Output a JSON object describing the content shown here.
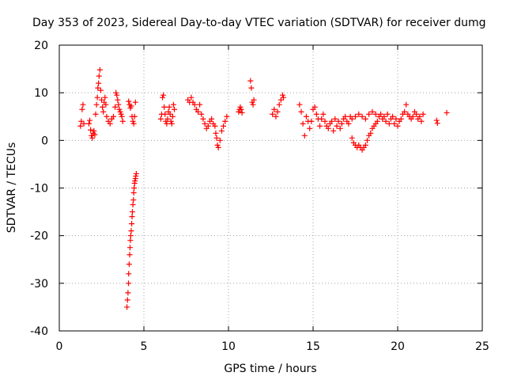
{
  "chart_data": {
    "type": "scatter",
    "title": "Day 353 of 2023, Sidereal Day-to-day VTEC variation (SDTVAR) for receiver dumg",
    "xlabel": "GPS time / hours",
    "ylabel": "SDTVAR / TECUs",
    "xlim": [
      0,
      25
    ],
    "ylim": [
      -40,
      20
    ],
    "xticks": [
      0,
      5,
      10,
      15,
      20,
      25
    ],
    "yticks": [
      -40,
      -30,
      -20,
      -10,
      0,
      10,
      20
    ],
    "grid": true,
    "marker": "+",
    "series": [
      {
        "name": "SDTVAR",
        "color": "#ff0000",
        "points": [
          [
            1.25,
            3.0
          ],
          [
            1.3,
            4.0
          ],
          [
            1.35,
            6.5
          ],
          [
            1.4,
            7.5
          ],
          [
            1.45,
            3.5
          ],
          [
            1.75,
            3.5
          ],
          [
            1.8,
            4.2
          ],
          [
            1.85,
            2.2
          ],
          [
            1.9,
            1.0
          ],
          [
            1.95,
            0.5
          ],
          [
            2.0,
            1.5
          ],
          [
            2.05,
            2.0
          ],
          [
            2.1,
            1.2
          ],
          [
            2.15,
            5.5
          ],
          [
            2.2,
            7.5
          ],
          [
            2.25,
            9.0
          ],
          [
            2.28,
            11.0
          ],
          [
            2.32,
            12.0
          ],
          [
            2.35,
            13.5
          ],
          [
            2.4,
            14.8
          ],
          [
            2.45,
            10.5
          ],
          [
            2.5,
            8.5
          ],
          [
            2.55,
            7.0
          ],
          [
            2.6,
            6.0
          ],
          [
            2.65,
            8.0
          ],
          [
            2.7,
            9.0
          ],
          [
            2.75,
            7.5
          ],
          [
            2.8,
            5.0
          ],
          [
            2.9,
            4.0
          ],
          [
            3.0,
            3.5
          ],
          [
            3.1,
            4.5
          ],
          [
            3.2,
            5.0
          ],
          [
            3.3,
            7.0
          ],
          [
            3.35,
            10.0
          ],
          [
            3.4,
            9.5
          ],
          [
            3.45,
            8.5
          ],
          [
            3.5,
            7.5
          ],
          [
            3.55,
            6.5
          ],
          [
            3.6,
            6.0
          ],
          [
            3.65,
            5.5
          ],
          [
            3.7,
            5.0
          ],
          [
            3.75,
            4.0
          ],
          [
            4.0,
            -35.0
          ],
          [
            4.03,
            -33.5
          ],
          [
            4.06,
            -32.0
          ],
          [
            4.09,
            -30.0
          ],
          [
            4.1,
            -28.0
          ],
          [
            4.13,
            -26.0
          ],
          [
            4.16,
            -24.0
          ],
          [
            4.18,
            -22.5
          ],
          [
            4.2,
            -21.0
          ],
          [
            4.22,
            -20.0
          ],
          [
            4.25,
            -19.0
          ],
          [
            4.28,
            -17.5
          ],
          [
            4.3,
            -16.0
          ],
          [
            4.32,
            -15.0
          ],
          [
            4.35,
            -13.5
          ],
          [
            4.38,
            -12.5
          ],
          [
            4.4,
            -11.0
          ],
          [
            4.42,
            -10.0
          ],
          [
            4.45,
            -9.0
          ],
          [
            4.47,
            -8.5
          ],
          [
            4.5,
            -8.0
          ],
          [
            4.52,
            -7.5
          ],
          [
            4.55,
            -7.0
          ],
          [
            4.1,
            8.2
          ],
          [
            4.15,
            7.5
          ],
          [
            4.2,
            6.8
          ],
          [
            4.25,
            7.2
          ],
          [
            4.3,
            5.0
          ],
          [
            4.35,
            4.0
          ],
          [
            4.4,
            3.5
          ],
          [
            4.45,
            5.0
          ],
          [
            4.5,
            8.0
          ],
          [
            6.0,
            4.5
          ],
          [
            6.05,
            5.5
          ],
          [
            6.1,
            9.0
          ],
          [
            6.15,
            9.5
          ],
          [
            6.2,
            7.0
          ],
          [
            6.25,
            5.5
          ],
          [
            6.3,
            4.0
          ],
          [
            6.35,
            3.5
          ],
          [
            6.4,
            4.5
          ],
          [
            6.45,
            6.0
          ],
          [
            6.5,
            7.0
          ],
          [
            6.55,
            5.5
          ],
          [
            6.6,
            4.0
          ],
          [
            6.65,
            3.5
          ],
          [
            6.7,
            5.0
          ],
          [
            6.75,
            7.5
          ],
          [
            6.8,
            6.5
          ],
          [
            7.6,
            8.5
          ],
          [
            7.7,
            8.0
          ],
          [
            7.8,
            9.0
          ],
          [
            7.9,
            8.0
          ],
          [
            8.0,
            7.5
          ],
          [
            8.1,
            6.5
          ],
          [
            8.2,
            6.0
          ],
          [
            8.3,
            7.5
          ],
          [
            8.4,
            5.5
          ],
          [
            8.5,
            4.5
          ],
          [
            8.6,
            3.5
          ],
          [
            8.7,
            2.5
          ],
          [
            8.8,
            3.0
          ],
          [
            8.9,
            4.0
          ],
          [
            9.0,
            4.5
          ],
          [
            9.1,
            3.5
          ],
          [
            9.2,
            3.0
          ],
          [
            9.25,
            1.5
          ],
          [
            9.3,
            0.5
          ],
          [
            9.35,
            -1.0
          ],
          [
            9.4,
            -1.5
          ],
          [
            9.5,
            0.0
          ],
          [
            9.6,
            2.0
          ],
          [
            9.7,
            3.0
          ],
          [
            9.8,
            4.0
          ],
          [
            9.9,
            5.0
          ],
          [
            10.6,
            6.0
          ],
          [
            10.65,
            6.5
          ],
          [
            10.7,
            7.0
          ],
          [
            10.75,
            6.5
          ],
          [
            10.8,
            5.8
          ],
          [
            11.3,
            12.5
          ],
          [
            11.35,
            11.0
          ],
          [
            11.4,
            8.0
          ],
          [
            11.45,
            7.5
          ],
          [
            11.5,
            8.5
          ],
          [
            12.6,
            5.5
          ],
          [
            12.7,
            6.5
          ],
          [
            12.8,
            5.0
          ],
          [
            12.9,
            6.0
          ],
          [
            13.0,
            7.5
          ],
          [
            13.1,
            8.5
          ],
          [
            13.2,
            9.5
          ],
          [
            13.25,
            9.0
          ],
          [
            14.2,
            7.5
          ],
          [
            14.3,
            6.0
          ],
          [
            14.4,
            3.5
          ],
          [
            14.5,
            1.0
          ],
          [
            14.6,
            5.0
          ],
          [
            14.7,
            4.0
          ],
          [
            14.8,
            2.5
          ],
          [
            14.9,
            4.0
          ],
          [
            15.0,
            6.5
          ],
          [
            15.1,
            7.0
          ],
          [
            15.2,
            5.5
          ],
          [
            15.3,
            4.5
          ],
          [
            15.4,
            3.0
          ],
          [
            15.5,
            4.5
          ],
          [
            15.6,
            5.5
          ],
          [
            15.7,
            4.0
          ],
          [
            15.8,
            3.0
          ],
          [
            15.9,
            2.5
          ],
          [
            16.0,
            3.5
          ],
          [
            16.1,
            4.0
          ],
          [
            16.2,
            2.0
          ],
          [
            16.3,
            4.5
          ],
          [
            16.4,
            3.0
          ],
          [
            16.5,
            4.0
          ],
          [
            16.6,
            2.5
          ],
          [
            16.7,
            3.5
          ],
          [
            16.8,
            4.5
          ],
          [
            16.9,
            5.0
          ],
          [
            17.0,
            4.0
          ],
          [
            17.1,
            3.5
          ],
          [
            17.2,
            5.0
          ],
          [
            17.3,
            0.5
          ],
          [
            17.4,
            -0.5
          ],
          [
            17.5,
            -1.0
          ],
          [
            17.6,
            -1.5
          ],
          [
            17.7,
            -1.0
          ],
          [
            17.8,
            -1.5
          ],
          [
            17.9,
            -2.0
          ],
          [
            18.0,
            -1.5
          ],
          [
            18.1,
            -1.0
          ],
          [
            18.2,
            0.0
          ],
          [
            18.3,
            1.0
          ],
          [
            18.4,
            1.5
          ],
          [
            18.5,
            2.5
          ],
          [
            18.6,
            3.0
          ],
          [
            18.7,
            3.5
          ],
          [
            17.3,
            4.5
          ],
          [
            17.5,
            5.0
          ],
          [
            17.7,
            5.5
          ],
          [
            17.9,
            5.0
          ],
          [
            18.1,
            4.5
          ],
          [
            18.3,
            5.5
          ],
          [
            18.5,
            6.0
          ],
          [
            18.7,
            5.5
          ],
          [
            18.8,
            4.0
          ],
          [
            18.9,
            5.0
          ],
          [
            19.0,
            5.5
          ],
          [
            19.1,
            4.5
          ],
          [
            19.2,
            5.0
          ],
          [
            19.3,
            4.0
          ],
          [
            19.4,
            5.5
          ],
          [
            19.5,
            3.5
          ],
          [
            19.6,
            4.5
          ],
          [
            19.7,
            5.0
          ],
          [
            19.8,
            3.5
          ],
          [
            19.9,
            4.5
          ],
          [
            20.0,
            3.0
          ],
          [
            20.1,
            4.0
          ],
          [
            20.2,
            4.5
          ],
          [
            20.3,
            5.5
          ],
          [
            20.4,
            6.0
          ],
          [
            20.5,
            7.5
          ],
          [
            20.6,
            5.5
          ],
          [
            20.7,
            5.0
          ],
          [
            20.8,
            4.5
          ],
          [
            20.9,
            5.0
          ],
          [
            21.0,
            6.0
          ],
          [
            21.1,
            5.5
          ],
          [
            21.2,
            4.5
          ],
          [
            21.3,
            5.0
          ],
          [
            21.4,
            4.0
          ],
          [
            21.5,
            5.5
          ],
          [
            22.3,
            4.2
          ],
          [
            22.35,
            3.6
          ],
          [
            22.9,
            5.8
          ]
        ]
      }
    ]
  }
}
